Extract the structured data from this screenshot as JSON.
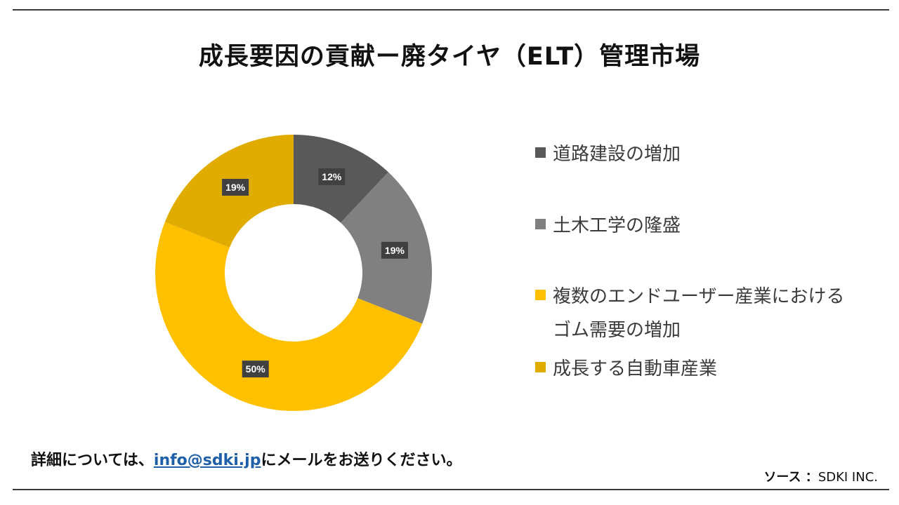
{
  "header": {
    "title": "成長要因の貢献ー廃タイヤ（ELT）管理市場"
  },
  "chart_data": {
    "type": "pie",
    "variant": "donut",
    "title": "成長要因の貢献ー廃タイヤ（ELT）管理市場",
    "slices": [
      {
        "label": "道路建設の増加",
        "value": 12,
        "display": "12%",
        "color": "#595959"
      },
      {
        "label": "土木工学の隆盛",
        "value": 19,
        "display": "19%",
        "color": "#808080"
      },
      {
        "label": "複数のエンドユーザー産業におけるゴム需要の増加",
        "value": 50,
        "display": "50%",
        "color": "#FFC000"
      },
      {
        "label": "成長する自動車産業",
        "value": 19,
        "display": "19%",
        "color": "#E0AC00"
      }
    ],
    "legend_position": "right"
  },
  "legend": {
    "items": [
      {
        "label": "道路建設の増加",
        "color": "#595959"
      },
      {
        "label": "土木工学の隆盛",
        "color": "#808080"
      },
      {
        "label": "複数のエンドユーザー産業における\nゴム需要の増加",
        "color": "#FFC000"
      },
      {
        "label": "成長する自動車産業",
        "color": "#E0AC00"
      }
    ]
  },
  "footer": {
    "note_before": "詳細については、",
    "email": "info@sdki.jp",
    "note_after": "にメールをお送りください。",
    "source_label": "ソース ：",
    "source_value": "SDKI INC."
  }
}
